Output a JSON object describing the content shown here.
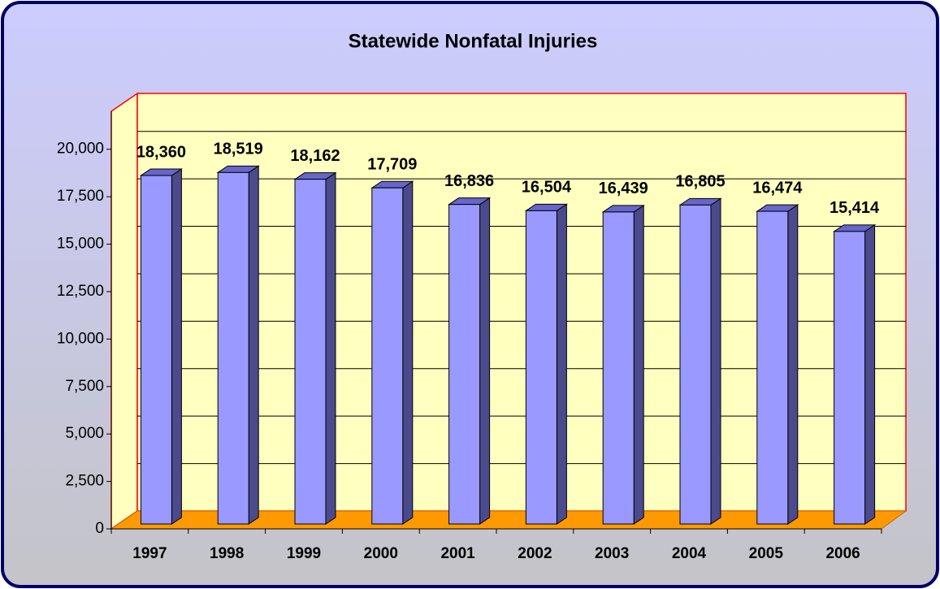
{
  "chart_data": {
    "type": "bar",
    "title": "Statewide Nonfatal Injuries",
    "categories": [
      "1997",
      "1998",
      "1999",
      "2000",
      "2001",
      "2002",
      "2003",
      "2004",
      "2005",
      "2006"
    ],
    "values": [
      18360,
      18519,
      18162,
      17709,
      16836,
      16504,
      16439,
      16805,
      16474,
      15414
    ],
    "value_labels": [
      "18,360",
      "18,519",
      "18,162",
      "17,709",
      "16,836",
      "16,504",
      "16,439",
      "16,805",
      "16,474",
      "15,414"
    ],
    "color": "#9999ff",
    "ylim": [
      0,
      22000
    ],
    "yticks": [
      0,
      {
        "value": 2500,
        "label": "2,500"
      },
      {
        "value": 5000,
        "label": "5,000"
      },
      {
        "value": 7500,
        "label": "7,500"
      },
      {
        "value": 10000,
        "label": "10,000"
      },
      {
        "value": 12500,
        "label": "12,500"
      },
      {
        "value": 15000,
        "label": "15,000"
      },
      {
        "value": 17500,
        "label": "17,500"
      },
      {
        "value": 20000,
        "label": "20,000"
      }
    ],
    "grid": true
  }
}
